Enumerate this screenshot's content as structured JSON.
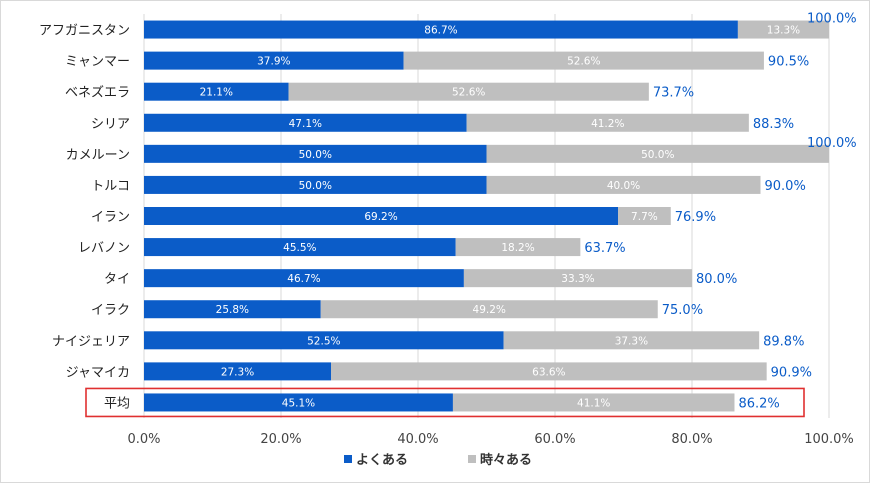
{
  "chart_data": {
    "type": "bar",
    "orientation": "horizontal",
    "stacked": true,
    "categories": [
      "アフガニスタン",
      "ミャンマー",
      "ベネズエラ",
      "シリア",
      "カメルーン",
      "トルコ",
      "イラン",
      "レバノン",
      "タイ",
      "イラク",
      "ナイジェリア",
      "ジャマイカ",
      "平均"
    ],
    "series": [
      {
        "name": "よくある",
        "color": "#0b5cc8",
        "values": [
          86.7,
          37.9,
          21.1,
          47.1,
          50.0,
          50.0,
          69.2,
          45.5,
          46.7,
          25.8,
          52.5,
          27.3,
          45.1
        ],
        "labels": [
          "86.7%",
          "37.9%",
          "21.1%",
          "47.1%",
          "50.0%",
          "50.0%",
          "69.2%",
          "45.5%",
          "46.7%",
          "25.8%",
          "52.5%",
          "27.3%",
          "45.1%"
        ]
      },
      {
        "name": "時々ある",
        "color": "#bfbfbf",
        "values": [
          13.3,
          52.6,
          52.6,
          41.2,
          50.0,
          40.0,
          7.7,
          18.2,
          33.3,
          49.2,
          37.3,
          63.6,
          41.1
        ],
        "labels": [
          "13.3%",
          "52.6%",
          "52.6%",
          "41.2%",
          "50.0%",
          "40.0%",
          "7.7%",
          "18.2%",
          "33.3%",
          "49.2%",
          "37.3%",
          "63.6%",
          "41.1%"
        ]
      }
    ],
    "totals": [
      "100.0%",
      "90.5%",
      "73.7%",
      "88.3%",
      "100.0%",
      "90.0%",
      "76.9%",
      "63.7%",
      "80.0%",
      "75.0%",
      "89.8%",
      "90.9%",
      "86.2%"
    ],
    "x_ticks": [
      "0.0%",
      "20.0%",
      "40.0%",
      "60.0%",
      "80.0%",
      "100.0%"
    ],
    "xlim": [
      0,
      100
    ],
    "legend_position": "bottom",
    "highlighted_category": "平均",
    "highlight_color": "#e03030",
    "grid": true
  }
}
